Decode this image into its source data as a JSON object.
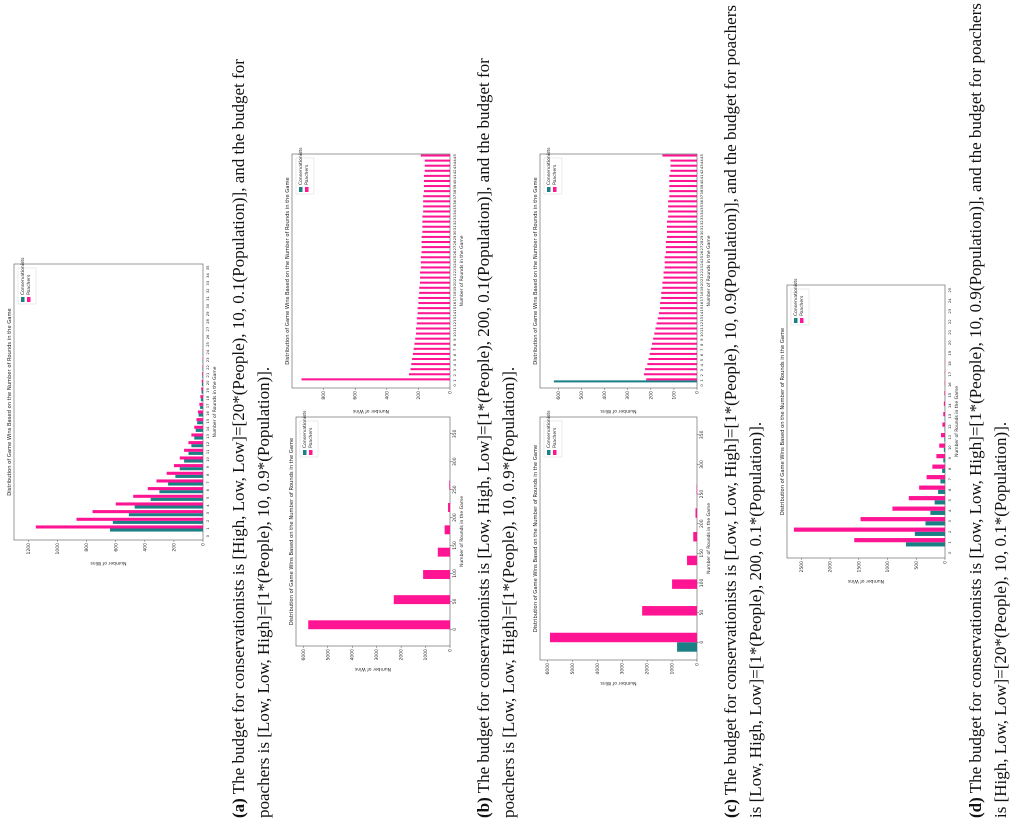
{
  "chart_data": [
    {
      "type": "bar",
      "title": "Distribution of Game Wins Based on the Number of Rounds in the Game",
      "x_label": "Number of Rounds in the Game",
      "y_label": "Number of Wins",
      "legend": "upper right",
      "categories": [
        0,
        1,
        2,
        3,
        4,
        5,
        6,
        7,
        8,
        9,
        10,
        11,
        12,
        13,
        14,
        15,
        16,
        17,
        18,
        19,
        20,
        21,
        22,
        23,
        24,
        25,
        26,
        27,
        28,
        29,
        30,
        31,
        32,
        33,
        34,
        35
      ],
      "series": [
        {
          "name": "Conservationists",
          "color": "#1b7f86",
          "values": [
            0,
            640,
            620,
            510,
            470,
            360,
            300,
            240,
            190,
            160,
            130,
            100,
            80,
            60,
            50,
            40,
            30,
            20,
            15,
            10,
            8,
            5,
            4,
            3,
            2,
            1,
            1,
            0,
            0,
            0,
            0,
            0,
            0,
            0,
            0,
            0
          ]
        },
        {
          "name": "Poachers",
          "color": "#ff1493",
          "values": [
            0,
            1150,
            870,
            760,
            600,
            480,
            380,
            320,
            250,
            200,
            160,
            130,
            100,
            80,
            60,
            45,
            35,
            25,
            18,
            12,
            9,
            6,
            4,
            3,
            2,
            1,
            1,
            0,
            0,
            0,
            0,
            0,
            0,
            0,
            0,
            0
          ]
        }
      ],
      "ylim": [
        0,
        1300
      ],
      "yticks": [
        0,
        200,
        400,
        600,
        800,
        1000,
        1200
      ]
    },
    {
      "type": "bar",
      "title": "Distribution of Game Wins Based on the Number of Rounds in the Game",
      "x_label": "Number of Rounds in the Game",
      "y_label": "Number of Wins",
      "legend": "upper right",
      "x": [
        0,
        45,
        90,
        130,
        170,
        210,
        250
      ],
      "series": [
        {
          "name": "Conservationists",
          "color": "#1b7f86",
          "values": [
            0,
            0,
            0,
            0,
            0,
            0,
            0
          ]
        },
        {
          "name": "Poachers",
          "color": "#ff1493",
          "values": [
            5800,
            2300,
            1100,
            500,
            220,
            80,
            30
          ]
        }
      ],
      "xlim": [
        -30,
        380
      ],
      "xticks": [
        0,
        50,
        100,
        150,
        200,
        250,
        300,
        350
      ],
      "ylim": [
        0,
        6300
      ],
      "yticks": [
        0,
        1000,
        2000,
        3000,
        4000,
        5000,
        6000
      ]
    },
    {
      "type": "bar",
      "title": "Distribution of Game Wins Based on the Number of Rounds in the Game",
      "x_label": "Number of Rounds in the Game",
      "y_label": "Number of Wins",
      "legend": "upper right",
      "categories": [
        0,
        1,
        2,
        3,
        4,
        5,
        6,
        7,
        8,
        9,
        10,
        11,
        12,
        13,
        14,
        15,
        16,
        17,
        18,
        19,
        20,
        21,
        22,
        23,
        24,
        25,
        26,
        27,
        28,
        29,
        30,
        31,
        32,
        33,
        34,
        35,
        36,
        37,
        38,
        39,
        40,
        41,
        42,
        43,
        44,
        45
      ],
      "series": [
        {
          "name": "Conservationists",
          "color": "#1b7f86",
          "values": [
            0,
            0,
            0,
            0,
            0,
            0,
            0,
            0,
            0,
            0,
            0,
            0,
            0,
            0,
            0,
            0,
            0,
            0,
            0,
            0,
            0,
            0,
            0,
            0,
            0,
            0,
            0,
            0,
            0,
            0,
            0,
            0,
            0,
            0,
            0,
            0,
            0,
            0,
            0,
            0,
            0,
            0,
            0,
            0,
            0,
            0
          ]
        },
        {
          "name": "Poachers",
          "color": "#ff1493",
          "values": [
            0,
            940,
            260,
            250,
            245,
            240,
            235,
            230,
            225,
            220,
            215,
            215,
            210,
            210,
            205,
            205,
            200,
            200,
            195,
            195,
            190,
            190,
            190,
            185,
            185,
            185,
            180,
            180,
            180,
            180,
            175,
            175,
            175,
            175,
            170,
            170,
            170,
            170,
            165,
            165,
            165,
            165,
            160,
            160,
            160,
            185
          ]
        }
      ],
      "ylim": [
        0,
        1000
      ],
      "yticks": [
        0,
        200,
        400,
        600,
        800
      ]
    },
    {
      "type": "bar",
      "title": "Distribution of Game Wins Based on the Number of Rounds in the Game",
      "x_label": "Number of Rounds in the Game",
      "y_label": "Number of Wins",
      "legend": "upper right",
      "x": [
        0,
        45,
        90,
        130,
        170,
        210,
        250
      ],
      "series": [
        {
          "name": "Conservationists",
          "color": "#1b7f86",
          "values": [
            800,
            0,
            0,
            0,
            0,
            0,
            0
          ]
        },
        {
          "name": "Poachers",
          "color": "#ff1493",
          "values": [
            5900,
            2200,
            1000,
            400,
            150,
            60,
            20
          ]
        }
      ],
      "xlim": [
        -30,
        380
      ],
      "xticks": [
        0,
        50,
        100,
        150,
        200,
        250,
        300,
        350
      ],
      "ylim": [
        0,
        6300
      ],
      "yticks": [
        0,
        1000,
        2000,
        3000,
        4000,
        5000,
        6000
      ]
    },
    {
      "type": "bar",
      "title": "Distribution of Game Wins Based on the Number of Rounds in the Game",
      "x_label": "Number of Rounds in the Game",
      "y_label": "Number of Wins",
      "legend": "upper right",
      "categories": [
        0,
        1,
        2,
        3,
        4,
        5,
        6,
        7,
        8,
        9,
        10,
        11,
        12,
        13,
        14,
        15,
        16,
        17,
        18,
        19,
        20,
        21,
        22,
        23,
        24,
        25,
        26,
        27,
        28,
        29,
        30,
        31,
        32,
        33,
        34,
        35,
        36,
        37,
        38,
        39,
        40,
        41,
        42,
        43,
        44,
        45
      ],
      "series": [
        {
          "name": "Conservationists",
          "color": "#1b7f86",
          "values": [
            0,
            620,
            0,
            0,
            0,
            0,
            0,
            0,
            0,
            0,
            0,
            0,
            0,
            0,
            0,
            0,
            0,
            0,
            0,
            0,
            0,
            0,
            0,
            0,
            0,
            0,
            0,
            0,
            0,
            0,
            0,
            0,
            0,
            0,
            0,
            0,
            0,
            0,
            0,
            0,
            0,
            0,
            0,
            0,
            0,
            0
          ]
        },
        {
          "name": "Poachers",
          "color": "#ff1493",
          "values": [
            0,
            220,
            230,
            225,
            215,
            210,
            205,
            200,
            195,
            190,
            185,
            180,
            175,
            170,
            165,
            160,
            160,
            155,
            155,
            150,
            150,
            145,
            145,
            140,
            140,
            140,
            135,
            135,
            135,
            130,
            130,
            130,
            130,
            125,
            125,
            125,
            125,
            120,
            120,
            120,
            120,
            120,
            115,
            115,
            115,
            150
          ]
        }
      ],
      "ylim": [
        0,
        680
      ],
      "yticks": [
        0,
        100,
        200,
        300,
        400,
        500,
        600
      ]
    },
    {
      "type": "bar",
      "title": "Distribution of Game Wins Based on the Number of Rounds in the Game",
      "x_label": "Number of Rounds in the Game",
      "y_label": "Number of Wins",
      "legend": "upper right",
      "categories": [
        0,
        1,
        2,
        3,
        4,
        5,
        6,
        7,
        8,
        9,
        10,
        11,
        12,
        13,
        14,
        15,
        16,
        17,
        18,
        19,
        20,
        21,
        22,
        23,
        24,
        25
      ],
      "series": [
        {
          "name": "Conservationists",
          "color": "#1b7f86",
          "values": [
            0,
            680,
            525,
            340,
            255,
            180,
            120,
            80,
            50,
            30,
            20,
            12,
            8,
            5,
            3,
            2,
            1,
            1,
            0,
            0,
            0,
            0,
            0,
            0,
            0,
            0
          ]
        },
        {
          "name": "Poachers",
          "color": "#ff1493",
          "values": [
            0,
            1580,
            2630,
            1470,
            915,
            630,
            450,
            320,
            220,
            150,
            100,
            70,
            45,
            30,
            20,
            12,
            8,
            5,
            3,
            2,
            1,
            0,
            0,
            0,
            0,
            0
          ]
        }
      ],
      "ylim": [
        0,
        2750
      ],
      "yticks": [
        0,
        500,
        1000,
        1500,
        2000,
        2500
      ]
    }
  ],
  "captions": [
    {
      "label": "(a)",
      "text": "The budget for conservationists is [High, Low, Low]=[20*(People), 10, 0.1(Population)], and the budget for poachers is [Low, Low, High]=[1*(People), 10, 0.9*(Population)]."
    },
    {
      "label": "(b)",
      "text": "The budget for conservationists is [Low, High, Low]=[1*(People), 200, 0.1(Population)], and the budget for poachers is [Low, Low, High]=[1*(People), 10, 0.9*(Population)]."
    },
    {
      "label": "(c)",
      "text": "The budget for conservationists is [Low, Low, High]=[1*(People), 10, 0.9(Population)], and the budget for poachers is [Low, High, Low]=[1*(People), 200, 0.1*(Population)]."
    },
    {
      "label": "(d)",
      "text": "The budget for conservationists is [Low, Low, High]=[1*(People), 10, 0.9(Population)], and the budget for poachers is [High, Low, Low]=[20*(People), 10, 0.1*(Population)]."
    }
  ]
}
